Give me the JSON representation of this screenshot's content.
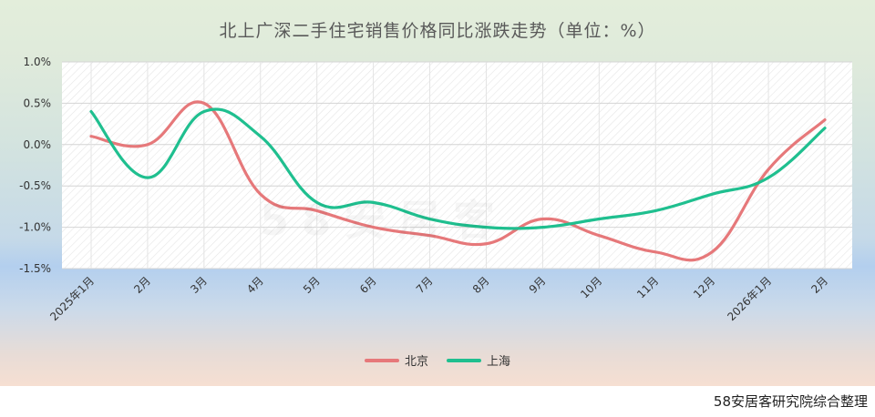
{
  "chart_data": {
    "type": "line",
    "title": "北上广深二手住宅销售价格同比涨跌走势（单位：%）",
    "categories": [
      "2025年1月",
      "2月",
      "3月",
      "4月",
      "5月",
      "6月",
      "7月",
      "8月",
      "9月",
      "10月",
      "11月",
      "12月",
      "2026年1月",
      "2月"
    ],
    "series": [
      {
        "name": "北京",
        "color": "#e6787a",
        "values": [
          0.1,
          0.0,
          0.5,
          -0.6,
          -0.8,
          -1.0,
          -1.1,
          -1.2,
          -0.9,
          -1.1,
          -1.3,
          -1.3,
          -0.3,
          0.3
        ]
      },
      {
        "name": "上海",
        "color": "#1fbf8f",
        "values": [
          0.4,
          -0.4,
          0.4,
          0.1,
          -0.7,
          -0.7,
          -0.9,
          -1.0,
          -1.0,
          -0.9,
          -0.8,
          -0.6,
          -0.4,
          0.2
        ]
      }
    ],
    "y_ticks": [
      "1.0%",
      "0.5%",
      "0.0%",
      "-0.5%",
      "-1.0%",
      "-1.5%"
    ],
    "ylim": [
      -1.5,
      1.0
    ],
    "grid": true,
    "legend_position": "bottom"
  },
  "watermark": "58安居客",
  "source_note": "58安居客研究院综合整理"
}
